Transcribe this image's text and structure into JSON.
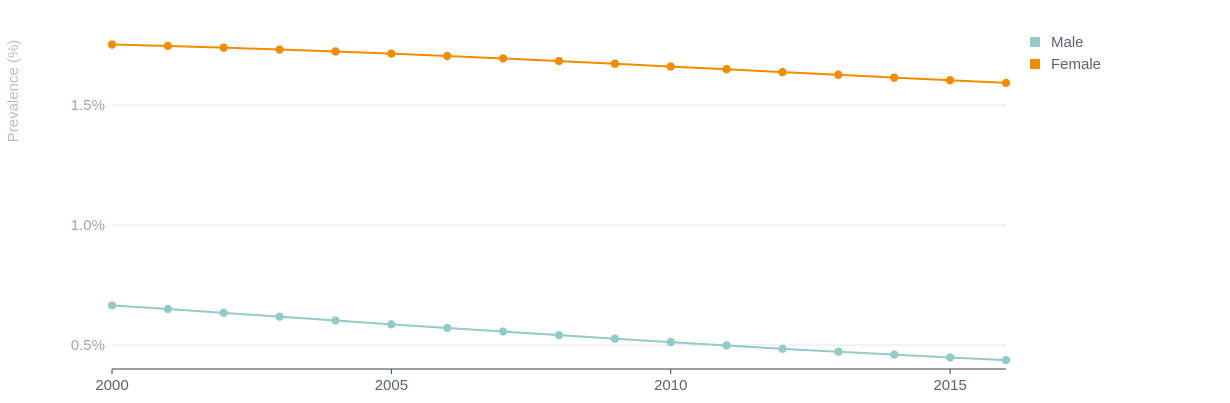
{
  "chart_data": {
    "type": "line",
    "title": "",
    "xlabel": "",
    "ylabel": "Prevalence (%)",
    "x": [
      2000,
      2001,
      2002,
      2003,
      2004,
      2005,
      2006,
      2007,
      2008,
      2009,
      2010,
      2011,
      2012,
      2013,
      2014,
      2015,
      2016
    ],
    "x_ticks": [
      2000,
      2005,
      2010,
      2015
    ],
    "x_tick_labels": [
      "2000",
      "2005",
      "2010",
      "2015"
    ],
    "xlim": [
      2000,
      2016
    ],
    "y_ticks": [
      0.5,
      1.0,
      1.5
    ],
    "y_tick_labels": [
      "0.5%",
      "1.0%",
      "1.5%"
    ],
    "ylim": [
      0.4,
      1.8
    ],
    "grid": "horizontal",
    "legend_position": "top-right",
    "series": [
      {
        "name": "Male",
        "color": "#93c9c6",
        "values": [
          0.665,
          0.65,
          0.634,
          0.618,
          0.602,
          0.586,
          0.571,
          0.556,
          0.541,
          0.526,
          0.512,
          0.498,
          0.484,
          0.472,
          0.46,
          0.448,
          0.437
        ]
      },
      {
        "name": "Female",
        "color": "#ef8c00",
        "values": [
          1.752,
          1.746,
          1.739,
          1.731,
          1.723,
          1.714,
          1.704,
          1.694,
          1.683,
          1.672,
          1.66,
          1.649,
          1.637,
          1.626,
          1.614,
          1.603,
          1.592
        ]
      }
    ]
  }
}
